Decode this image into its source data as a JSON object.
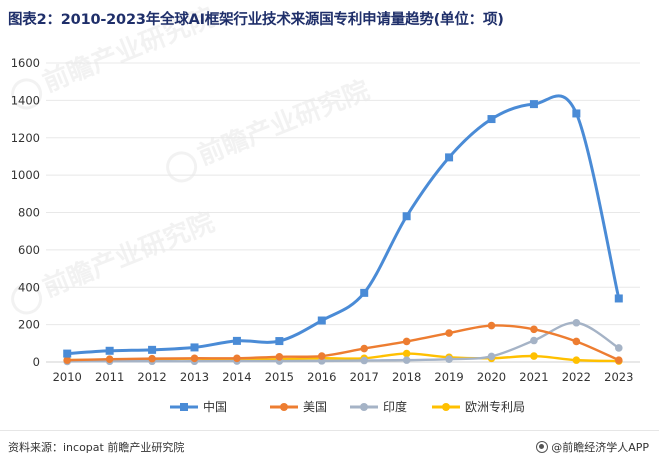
{
  "title": "图表2：2010-2023年全球AI框架行业技术来源国专利申请量趋势(单位：项)",
  "source_text": "资料来源：incopat 前瞻产业研究院",
  "brand_text": "@前瞻经济学人APP",
  "watermark_texts": [
    "前瞻产业研究院",
    "前瞻产业研究院",
    "前瞻产业研究院"
  ],
  "colors": {
    "china": "#4a8bd6",
    "usa": "#ed7d31",
    "india": "#a5b3c6",
    "europe": "#ffc000",
    "grid": "#e8e8e8",
    "axis": "#d0d0d0"
  },
  "chart_data": {
    "type": "line",
    "title": "图表2：2010-2023年全球AI框架行业技术来源国专利申请量趋势(单位：项)",
    "xlabel": "",
    "ylabel": "",
    "categories": [
      "2010",
      "2011",
      "2012",
      "2013",
      "2014",
      "2015",
      "2016",
      "2017",
      "2018",
      "2019",
      "2020",
      "2021",
      "2022",
      "2023"
    ],
    "y_ticks": [
      0,
      200,
      400,
      600,
      800,
      1000,
      1200,
      1400,
      1600
    ],
    "ylim": [
      0,
      1600
    ],
    "grid": true,
    "legend_position": "bottom",
    "smooth": true,
    "series": [
      {
        "name": "中国",
        "marker": "square",
        "values": [
          45,
          60,
          65,
          78,
          113,
          112,
          222,
          370,
          780,
          1095,
          1300,
          1380,
          1330,
          340
        ]
      },
      {
        "name": "美国",
        "marker": "circle",
        "values": [
          10,
          15,
          18,
          20,
          20,
          28,
          32,
          72,
          110,
          155,
          195,
          175,
          110,
          10
        ]
      },
      {
        "name": "印度",
        "marker": "circle",
        "values": [
          3,
          4,
          4,
          4,
          5,
          5,
          6,
          8,
          10,
          15,
          30,
          115,
          210,
          75
        ]
      },
      {
        "name": "欧洲专利局",
        "marker": "circle",
        "values": [
          10,
          12,
          14,
          18,
          12,
          15,
          20,
          20,
          45,
          25,
          20,
          32,
          10,
          5
        ]
      }
    ]
  }
}
